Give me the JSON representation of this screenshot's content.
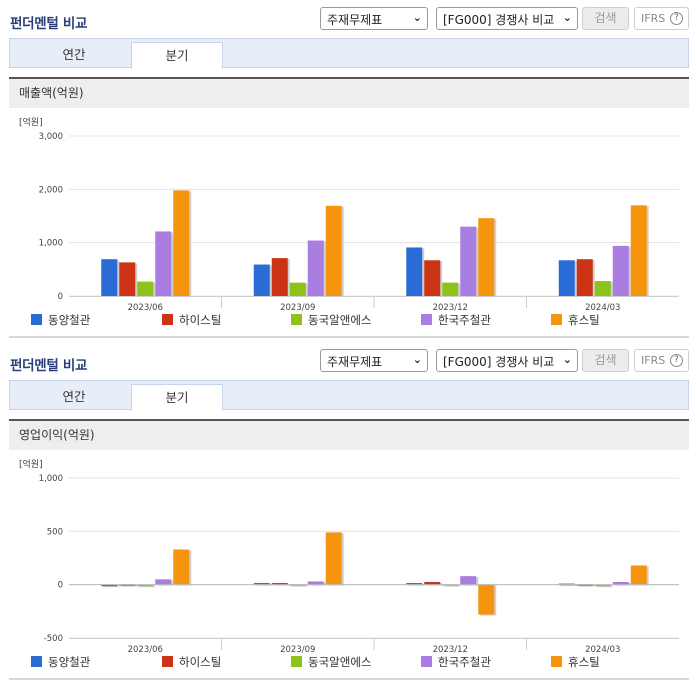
{
  "controls": {
    "report_select": "주재무제표",
    "peer_select": "[FG000] 경쟁사 비교",
    "search_label": "검색",
    "ifrs_label": "IFRS",
    "help_glyph": "?"
  },
  "panels": [
    {
      "title": "펀더멘털 비교",
      "tabs": [
        "연간",
        "분기"
      ],
      "active_tab": 1,
      "chart_title": "매출액(억원)"
    },
    {
      "title": "펀더멘털 비교",
      "tabs": [
        "연간",
        "분기"
      ],
      "active_tab": 1,
      "chart_title": "영업이익(억원)"
    }
  ],
  "chart_data": [
    {
      "type": "bar",
      "title": "매출액(억원)",
      "unit_label": "[억원]",
      "categories": [
        "2023/06",
        "2023/09",
        "2023/12",
        "2024/03"
      ],
      "ylim": [
        0,
        3000
      ],
      "yticks": [
        0,
        1000,
        2000,
        3000
      ],
      "ytick_labels": [
        "0",
        "1,000",
        "2,000",
        "3,000"
      ],
      "grid": true,
      "legend_position": "bottom",
      "series": [
        {
          "name": "동양철관",
          "color": "#2b6bd6",
          "values": [
            690,
            590,
            910,
            670
          ]
        },
        {
          "name": "하이스틸",
          "color": "#cc3314",
          "values": [
            630,
            710,
            670,
            690
          ]
        },
        {
          "name": "동국알앤에스",
          "color": "#8cc21a",
          "values": [
            270,
            250,
            250,
            280
          ]
        },
        {
          "name": "한국주철관",
          "color": "#a97ee0",
          "values": [
            1210,
            1040,
            1300,
            940
          ]
        },
        {
          "name": "휴스틸",
          "color": "#f7940e",
          "values": [
            1980,
            1690,
            1460,
            1700
          ]
        }
      ]
    },
    {
      "type": "bar",
      "title": "영업이익(억원)",
      "unit_label": "[억원]",
      "categories": [
        "2023/06",
        "2023/09",
        "2023/12",
        "2024/03"
      ],
      "ylim": [
        -500,
        1000
      ],
      "yticks": [
        -500,
        0,
        500,
        1000
      ],
      "ytick_labels": [
        "-500",
        "0",
        "500",
        "1,000"
      ],
      "grid": true,
      "legend_position": "bottom",
      "series": [
        {
          "name": "동양철관",
          "color": "#2b6bd6",
          "values": [
            -10,
            15,
            15,
            10
          ]
        },
        {
          "name": "하이스틸",
          "color": "#cc3314",
          "values": [
            5,
            15,
            25,
            5
          ]
        },
        {
          "name": "동국알앤에스",
          "color": "#8cc21a",
          "values": [
            -10,
            5,
            5,
            -10
          ]
        },
        {
          "name": "한국주철관",
          "color": "#a97ee0",
          "values": [
            50,
            30,
            80,
            25
          ]
        },
        {
          "name": "휴스틸",
          "color": "#f7940e",
          "values": [
            330,
            490,
            -280,
            180
          ]
        }
      ]
    }
  ]
}
